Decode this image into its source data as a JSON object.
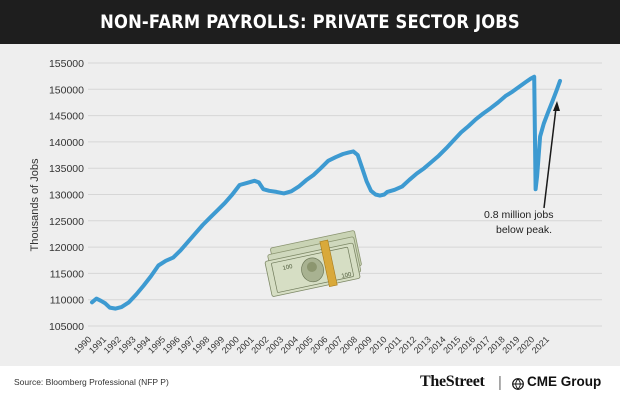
{
  "header": {
    "title": "NON-FARM PAYROLLS: PRIVATE SECTOR JOBS"
  },
  "footer": {
    "source": "Source: Bloomberg Professional (NFP P)",
    "brand1": "TheStreet",
    "separator": "|",
    "brand2": "CME Group"
  },
  "icons": {
    "money": "money-stack-icon",
    "cme": "cme-globe-icon"
  },
  "colors": {
    "line": "#3d9ad1",
    "header_bg": "#1e1e1e",
    "plot_bg": "#eeeeee"
  },
  "chart_data": {
    "type": "line",
    "title": "NON-FARM PAYROLLS: PRIVATE SECTOR JOBS",
    "xlabel": "",
    "ylabel": "Thousands of Jobs",
    "ylim": [
      105000,
      155000
    ],
    "xlim": [
      1990,
      2021.7
    ],
    "yticks": [
      105000,
      110000,
      115000,
      120000,
      125000,
      130000,
      135000,
      140000,
      145000,
      150000,
      155000
    ],
    "xticks": [
      "1990",
      "1991",
      "1992",
      "1993",
      "1994",
      "1995",
      "1996",
      "1997",
      "1998",
      "1999",
      "2000",
      "2001",
      "2002",
      "2003",
      "2004",
      "2005",
      "2006",
      "2007",
      "2008",
      "2009",
      "2010",
      "2011",
      "2012",
      "2013",
      "2014",
      "2015",
      "2016",
      "2017",
      "2018",
      "2019",
      "2020",
      "2021"
    ],
    "grid": true,
    "annotation": {
      "text_lines": [
        "0.8 million jobs",
        "below peak."
      ]
    },
    "series": [
      {
        "x": [
          1990.0,
          1990.3,
          1990.6,
          1990.9,
          1991.2,
          1991.6,
          1992.0,
          1992.5,
          1993.0,
          1993.5,
          1994.0,
          1994.5,
          1995.0,
          1995.5,
          1996.0,
          1996.5,
          1997.0,
          1997.5,
          1998.0,
          1998.5,
          1999.0,
          1999.5,
          2000.0,
          2000.5,
          2001.0,
          2001.3,
          2001.6,
          2002.0,
          2002.5,
          2003.0,
          2003.5,
          2004.0,
          2004.5,
          2005.0,
          2005.5,
          2006.0,
          2006.5,
          2007.0,
          2007.4,
          2007.7,
          2008.0,
          2008.3,
          2008.6,
          2008.9,
          2009.2,
          2009.5,
          2009.8,
          2010.0,
          2010.5,
          2011.0,
          2011.5,
          2012.0,
          2012.5,
          2013.0,
          2013.5,
          2014.0,
          2014.5,
          2015.0,
          2015.5,
          2016.0,
          2016.5,
          2017.0,
          2017.5,
          2018.0,
          2018.5,
          2019.0,
          2019.4,
          2019.7,
          2019.95,
          2020.05,
          2020.15,
          2020.35,
          2020.6,
          2020.9,
          2021.2,
          2021.5,
          2021.7
        ],
        "values": [
          109500,
          110200,
          109800,
          109300,
          108500,
          108300,
          108600,
          109500,
          111000,
          112700,
          114500,
          116500,
          117400,
          118000,
          119400,
          121000,
          122600,
          124200,
          125600,
          127000,
          128400,
          130000,
          131800,
          132200,
          132600,
          132300,
          131000,
          130700,
          130500,
          130200,
          130600,
          131500,
          132700,
          133700,
          135000,
          136400,
          137100,
          137700,
          138000,
          138200,
          137500,
          135000,
          132500,
          130700,
          130000,
          129800,
          130000,
          130500,
          130900,
          131500,
          132800,
          134000,
          135000,
          136200,
          137400,
          138800,
          140300,
          141800,
          143000,
          144300,
          145400,
          146400,
          147500,
          148700,
          149600,
          150600,
          151400,
          152000,
          152400,
          131000,
          133500,
          141000,
          143500,
          145700,
          147800,
          150000,
          151600
        ]
      }
    ]
  }
}
